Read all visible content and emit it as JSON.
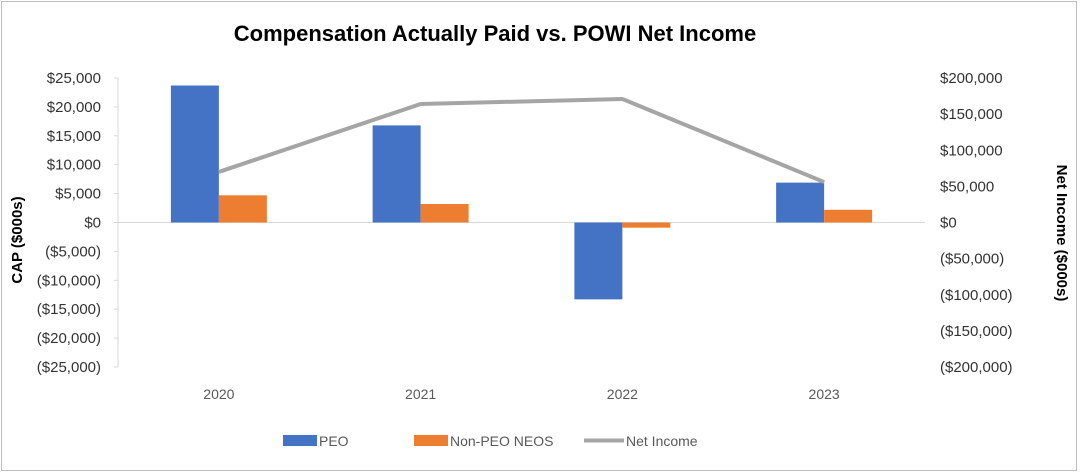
{
  "chart_data": {
    "type": "bar",
    "title": "Compensation Actually Paid vs. POWI Net Income",
    "categories": [
      "2020",
      "2021",
      "2022",
      "2023"
    ],
    "series": [
      {
        "name": "PEO",
        "kind": "bar",
        "axis": "left",
        "color": "#4472C4",
        "values": [
          23700,
          16800,
          -13300,
          6900
        ]
      },
      {
        "name": "Non-PEO NEOS",
        "kind": "bar",
        "axis": "left",
        "color": "#ED7D31",
        "values": [
          4700,
          3200,
          -900,
          2200
        ]
      },
      {
        "name": "Net Income",
        "kind": "line",
        "axis": "right",
        "color": "#A5A5A5",
        "values": [
          70000,
          164000,
          171000,
          56000
        ]
      }
    ],
    "ylabel_left": "CAP ($000s)",
    "ylabel_right": "Net Income ($000s)",
    "ylim_left": [
      -25000,
      25000
    ],
    "ylim_right": [
      -200000,
      200000
    ],
    "yticks_left": [
      "$25,000",
      "$20,000",
      "$15,000",
      "$10,000",
      "$5,000",
      "$0",
      "($5,000)",
      "($10,000)",
      "($15,000)",
      "($20,000)",
      "($25,000)"
    ],
    "yticks_right": [
      "$200,000",
      "$150,000",
      "$100,000",
      "$50,000",
      "$0",
      "($50,000)",
      "($100,000)",
      "($150,000)",
      "($200,000)"
    ],
    "grid": false,
    "legend_position": "bottom"
  }
}
